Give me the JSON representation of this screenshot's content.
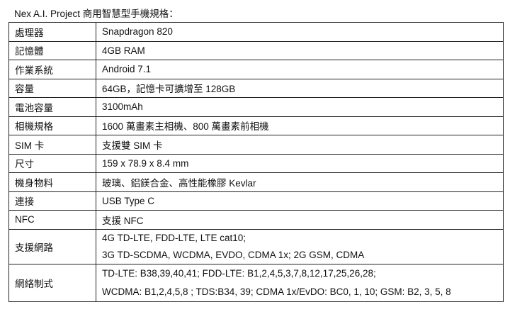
{
  "title": "Nex A.I. Project 商用智慧型手機規格：",
  "rows": [
    {
      "label": "處理器",
      "value": [
        "Snapdragon  820"
      ]
    },
    {
      "label": "記憶體",
      "value": [
        "4GB RAM"
      ]
    },
    {
      "label": "作業系統",
      "value": [
        "Android  7.1"
      ]
    },
    {
      "label": "容量",
      "value": [
        "64GB，記憶卡可擴增至 128GB"
      ]
    },
    {
      "label": "電池容量",
      "value": [
        "3100mAh"
      ]
    },
    {
      "label": "相機規格",
      "value": [
        "1600 萬畫素主相機、800 萬畫素前相機"
      ]
    },
    {
      "label": "SIM 卡",
      "value": [
        "支援雙 SIM 卡"
      ]
    },
    {
      "label": "尺寸",
      "value": [
        "159 x 78.9 x 8.4 mm"
      ]
    },
    {
      "label": "機身物料",
      "value": [
        "玻璃、鋁鎂合金、高性能橡膠 Kevlar"
      ]
    },
    {
      "label": "連接",
      "value": [
        "USB Type  C"
      ]
    },
    {
      "label": "NFC",
      "value": [
        "支援 NFC"
      ]
    },
    {
      "label": "支援網路",
      "value": [
        "4G TD-LTE, FDD-LTE, LTE cat10;",
        "3G TD-SCDMA, WCDMA,  EVDO, CDMA 1x; 2G GSM,  CDMA"
      ]
    },
    {
      "label": "網絡制式",
      "value": [
        "TD-LTE: B38,39,40,41; FDD-LTE: B1,2,4,5,3,7,8,12,17,25,26,28;",
        "WCDMA: B1,2,4,5,8 ; TDS:B34, 39; CDMA 1x/EvDO: BC0, 1, 10; GSM: B2, 3, 5, 8"
      ]
    }
  ]
}
